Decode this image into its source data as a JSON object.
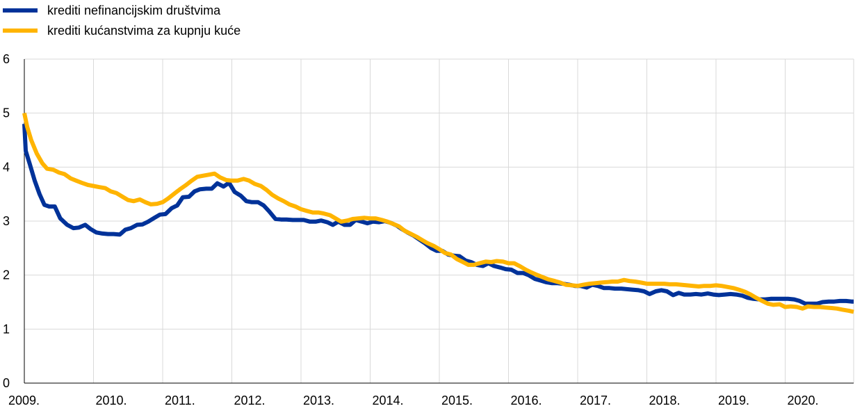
{
  "chart_data": {
    "type": "line",
    "title": "",
    "xlabel": "",
    "ylabel": "",
    "ylim": [
      0,
      6
    ],
    "yticks": [
      "0",
      "1",
      "2",
      "3",
      "4",
      "5",
      "6"
    ],
    "xlim": [
      2009.0,
      2020.99
    ],
    "xticks": [
      {
        "value": 2009,
        "label": "2009."
      },
      {
        "value": 2010,
        "label": "2010."
      },
      {
        "value": 2011,
        "label": "2011."
      },
      {
        "value": 2012,
        "label": "2012."
      },
      {
        "value": 2013,
        "label": "2013."
      },
      {
        "value": 2014,
        "label": "2014."
      },
      {
        "value": 2015,
        "label": "2015."
      },
      {
        "value": 2016,
        "label": "2016."
      },
      {
        "value": 2017,
        "label": "2017."
      },
      {
        "value": 2018,
        "label": "2018."
      },
      {
        "value": 2019,
        "label": "2019."
      },
      {
        "value": 2020,
        "label": "2020."
      }
    ],
    "grid": true,
    "legend_position": "top-left",
    "series": [
      {
        "name": "krediti nefinancijskim društvima",
        "color": "#003299",
        "points": [
          [
            2009.0,
            4.8
          ],
          [
            2009.02,
            4.3
          ],
          [
            2009.08,
            4.05
          ],
          [
            2009.15,
            3.75
          ],
          [
            2009.22,
            3.5
          ],
          [
            2009.29,
            3.3
          ],
          [
            2009.36,
            3.27
          ],
          [
            2009.44,
            3.27
          ],
          [
            2009.52,
            3.05
          ],
          [
            2009.62,
            2.93
          ],
          [
            2009.71,
            2.87
          ],
          [
            2009.79,
            2.88
          ],
          [
            2009.88,
            2.93
          ],
          [
            2009.96,
            2.85
          ],
          [
            2010.04,
            2.79
          ],
          [
            2010.13,
            2.77
          ],
          [
            2010.21,
            2.76
          ],
          [
            2010.29,
            2.76
          ],
          [
            2010.38,
            2.75
          ],
          [
            2010.46,
            2.84
          ],
          [
            2010.54,
            2.87
          ],
          [
            2010.63,
            2.93
          ],
          [
            2010.71,
            2.94
          ],
          [
            2010.79,
            2.99
          ],
          [
            2010.88,
            3.06
          ],
          [
            2010.96,
            3.12
          ],
          [
            2011.04,
            3.13
          ],
          [
            2011.13,
            3.24
          ],
          [
            2011.21,
            3.29
          ],
          [
            2011.29,
            3.44
          ],
          [
            2011.38,
            3.45
          ],
          [
            2011.46,
            3.55
          ],
          [
            2011.54,
            3.59
          ],
          [
            2011.63,
            3.6
          ],
          [
            2011.71,
            3.6
          ],
          [
            2011.79,
            3.7
          ],
          [
            2011.88,
            3.64
          ],
          [
            2011.96,
            3.71
          ],
          [
            2012.04,
            3.54
          ],
          [
            2012.13,
            3.47
          ],
          [
            2012.21,
            3.37
          ],
          [
            2012.29,
            3.35
          ],
          [
            2012.38,
            3.35
          ],
          [
            2012.46,
            3.29
          ],
          [
            2012.54,
            3.18
          ],
          [
            2012.63,
            3.04
          ],
          [
            2012.71,
            3.03
          ],
          [
            2012.79,
            3.03
          ],
          [
            2012.88,
            3.02
          ],
          [
            2012.96,
            3.02
          ],
          [
            2013.04,
            3.02
          ],
          [
            2013.13,
            2.99
          ],
          [
            2013.21,
            2.99
          ],
          [
            2013.29,
            3.01
          ],
          [
            2013.38,
            2.98
          ],
          [
            2013.46,
            2.93
          ],
          [
            2013.54,
            2.99
          ],
          [
            2013.63,
            2.93
          ],
          [
            2013.71,
            2.93
          ],
          [
            2013.79,
            3.02
          ],
          [
            2013.88,
            2.99
          ],
          [
            2013.96,
            2.96
          ],
          [
            2014.04,
            2.99
          ],
          [
            2014.13,
            2.98
          ],
          [
            2014.21,
            3.0
          ],
          [
            2014.29,
            2.97
          ],
          [
            2014.38,
            2.92
          ],
          [
            2014.46,
            2.85
          ],
          [
            2014.54,
            2.79
          ],
          [
            2014.63,
            2.73
          ],
          [
            2014.71,
            2.66
          ],
          [
            2014.79,
            2.59
          ],
          [
            2014.88,
            2.5
          ],
          [
            2014.96,
            2.45
          ],
          [
            2015.04,
            2.45
          ],
          [
            2015.13,
            2.38
          ],
          [
            2015.21,
            2.36
          ],
          [
            2015.29,
            2.35
          ],
          [
            2015.38,
            2.27
          ],
          [
            2015.46,
            2.24
          ],
          [
            2015.54,
            2.19
          ],
          [
            2015.63,
            2.17
          ],
          [
            2015.71,
            2.22
          ],
          [
            2015.79,
            2.17
          ],
          [
            2015.88,
            2.14
          ],
          [
            2015.96,
            2.11
          ],
          [
            2016.04,
            2.1
          ],
          [
            2016.13,
            2.04
          ],
          [
            2016.21,
            2.04
          ],
          [
            2016.29,
            2.0
          ],
          [
            2016.38,
            1.93
          ],
          [
            2016.46,
            1.9
          ],
          [
            2016.54,
            1.87
          ],
          [
            2016.63,
            1.85
          ],
          [
            2016.71,
            1.85
          ],
          [
            2016.79,
            1.84
          ],
          [
            2016.88,
            1.82
          ],
          [
            2016.96,
            1.8
          ],
          [
            2017.04,
            1.8
          ],
          [
            2017.13,
            1.77
          ],
          [
            2017.21,
            1.82
          ],
          [
            2017.29,
            1.8
          ],
          [
            2017.38,
            1.76
          ],
          [
            2017.46,
            1.76
          ],
          [
            2017.54,
            1.75
          ],
          [
            2017.63,
            1.75
          ],
          [
            2017.71,
            1.74
          ],
          [
            2017.79,
            1.73
          ],
          [
            2017.88,
            1.72
          ],
          [
            2017.96,
            1.7
          ],
          [
            2018.04,
            1.65
          ],
          [
            2018.13,
            1.7
          ],
          [
            2018.21,
            1.72
          ],
          [
            2018.29,
            1.7
          ],
          [
            2018.38,
            1.63
          ],
          [
            2018.46,
            1.67
          ],
          [
            2018.54,
            1.64
          ],
          [
            2018.63,
            1.64
          ],
          [
            2018.71,
            1.65
          ],
          [
            2018.79,
            1.64
          ],
          [
            2018.88,
            1.66
          ],
          [
            2018.96,
            1.64
          ],
          [
            2019.04,
            1.63
          ],
          [
            2019.13,
            1.64
          ],
          [
            2019.21,
            1.65
          ],
          [
            2019.29,
            1.64
          ],
          [
            2019.38,
            1.62
          ],
          [
            2019.46,
            1.58
          ],
          [
            2019.54,
            1.56
          ],
          [
            2019.63,
            1.55
          ],
          [
            2019.71,
            1.55
          ],
          [
            2019.79,
            1.56
          ],
          [
            2019.88,
            1.56
          ],
          [
            2019.96,
            1.56
          ],
          [
            2020.04,
            1.56
          ],
          [
            2020.13,
            1.55
          ],
          [
            2020.21,
            1.52
          ],
          [
            2020.29,
            1.47
          ],
          [
            2020.38,
            1.47
          ],
          [
            2020.46,
            1.47
          ],
          [
            2020.54,
            1.5
          ],
          [
            2020.63,
            1.51
          ],
          [
            2020.71,
            1.51
          ],
          [
            2020.79,
            1.52
          ],
          [
            2020.88,
            1.52
          ],
          [
            2020.96,
            1.51
          ],
          [
            2020.99,
            1.51
          ]
        ]
      },
      {
        "name": "krediti kućanstvima za kupnju kuće",
        "color": "#FFB400",
        "points": [
          [
            2009.0,
            5.0
          ],
          [
            2009.04,
            4.75
          ],
          [
            2009.1,
            4.5
          ],
          [
            2009.18,
            4.25
          ],
          [
            2009.26,
            4.07
          ],
          [
            2009.33,
            3.97
          ],
          [
            2009.42,
            3.95
          ],
          [
            2009.5,
            3.9
          ],
          [
            2009.58,
            3.87
          ],
          [
            2009.67,
            3.79
          ],
          [
            2009.75,
            3.75
          ],
          [
            2009.83,
            3.71
          ],
          [
            2009.92,
            3.67
          ],
          [
            2010.0,
            3.65
          ],
          [
            2010.08,
            3.63
          ],
          [
            2010.17,
            3.61
          ],
          [
            2010.25,
            3.55
          ],
          [
            2010.33,
            3.52
          ],
          [
            2010.42,
            3.45
          ],
          [
            2010.5,
            3.39
          ],
          [
            2010.58,
            3.37
          ],
          [
            2010.67,
            3.4
          ],
          [
            2010.75,
            3.35
          ],
          [
            2010.83,
            3.31
          ],
          [
            2010.92,
            3.32
          ],
          [
            2011.0,
            3.35
          ],
          [
            2011.08,
            3.42
          ],
          [
            2011.17,
            3.51
          ],
          [
            2011.25,
            3.59
          ],
          [
            2011.33,
            3.66
          ],
          [
            2011.42,
            3.75
          ],
          [
            2011.5,
            3.82
          ],
          [
            2011.58,
            3.84
          ],
          [
            2011.67,
            3.86
          ],
          [
            2011.75,
            3.88
          ],
          [
            2011.83,
            3.81
          ],
          [
            2011.92,
            3.76
          ],
          [
            2012.0,
            3.75
          ],
          [
            2012.08,
            3.75
          ],
          [
            2012.17,
            3.78
          ],
          [
            2012.25,
            3.75
          ],
          [
            2012.33,
            3.69
          ],
          [
            2012.42,
            3.65
          ],
          [
            2012.5,
            3.58
          ],
          [
            2012.58,
            3.49
          ],
          [
            2012.67,
            3.42
          ],
          [
            2012.75,
            3.37
          ],
          [
            2012.83,
            3.31
          ],
          [
            2012.92,
            3.27
          ],
          [
            2013.0,
            3.22
          ],
          [
            2013.08,
            3.19
          ],
          [
            2013.17,
            3.16
          ],
          [
            2013.25,
            3.16
          ],
          [
            2013.33,
            3.14
          ],
          [
            2013.42,
            3.11
          ],
          [
            2013.5,
            3.05
          ],
          [
            2013.58,
            2.99
          ],
          [
            2013.67,
            3.01
          ],
          [
            2013.75,
            3.04
          ],
          [
            2013.83,
            3.05
          ],
          [
            2013.92,
            3.06
          ],
          [
            2014.0,
            3.05
          ],
          [
            2014.08,
            3.05
          ],
          [
            2014.17,
            3.02
          ],
          [
            2014.25,
            2.99
          ],
          [
            2014.33,
            2.95
          ],
          [
            2014.42,
            2.9
          ],
          [
            2014.5,
            2.82
          ],
          [
            2014.58,
            2.77
          ],
          [
            2014.67,
            2.71
          ],
          [
            2014.75,
            2.65
          ],
          [
            2014.83,
            2.59
          ],
          [
            2014.92,
            2.54
          ],
          [
            2015.0,
            2.48
          ],
          [
            2015.08,
            2.41
          ],
          [
            2015.17,
            2.38
          ],
          [
            2015.25,
            2.3
          ],
          [
            2015.33,
            2.25
          ],
          [
            2015.42,
            2.19
          ],
          [
            2015.5,
            2.19
          ],
          [
            2015.58,
            2.22
          ],
          [
            2015.67,
            2.25
          ],
          [
            2015.75,
            2.24
          ],
          [
            2015.83,
            2.26
          ],
          [
            2015.92,
            2.25
          ],
          [
            2016.0,
            2.22
          ],
          [
            2016.08,
            2.22
          ],
          [
            2016.17,
            2.16
          ],
          [
            2016.25,
            2.1
          ],
          [
            2016.33,
            2.05
          ],
          [
            2016.42,
            2.0
          ],
          [
            2016.5,
            1.96
          ],
          [
            2016.58,
            1.92
          ],
          [
            2016.67,
            1.89
          ],
          [
            2016.75,
            1.86
          ],
          [
            2016.83,
            1.82
          ],
          [
            2016.92,
            1.81
          ],
          [
            2017.0,
            1.8
          ],
          [
            2017.08,
            1.82
          ],
          [
            2017.17,
            1.84
          ],
          [
            2017.25,
            1.85
          ],
          [
            2017.33,
            1.86
          ],
          [
            2017.42,
            1.87
          ],
          [
            2017.5,
            1.88
          ],
          [
            2017.58,
            1.88
          ],
          [
            2017.67,
            1.91
          ],
          [
            2017.75,
            1.89
          ],
          [
            2017.83,
            1.88
          ],
          [
            2017.92,
            1.86
          ],
          [
            2018.0,
            1.84
          ],
          [
            2018.08,
            1.84
          ],
          [
            2018.17,
            1.84
          ],
          [
            2018.25,
            1.84
          ],
          [
            2018.33,
            1.83
          ],
          [
            2018.42,
            1.83
          ],
          [
            2018.5,
            1.82
          ],
          [
            2018.58,
            1.81
          ],
          [
            2018.67,
            1.8
          ],
          [
            2018.75,
            1.79
          ],
          [
            2018.83,
            1.8
          ],
          [
            2018.92,
            1.8
          ],
          [
            2019.0,
            1.81
          ],
          [
            2019.08,
            1.8
          ],
          [
            2019.17,
            1.78
          ],
          [
            2019.25,
            1.76
          ],
          [
            2019.33,
            1.73
          ],
          [
            2019.42,
            1.69
          ],
          [
            2019.5,
            1.64
          ],
          [
            2019.58,
            1.58
          ],
          [
            2019.67,
            1.52
          ],
          [
            2019.75,
            1.47
          ],
          [
            2019.83,
            1.45
          ],
          [
            2019.92,
            1.46
          ],
          [
            2020.0,
            1.41
          ],
          [
            2020.08,
            1.42
          ],
          [
            2020.17,
            1.41
          ],
          [
            2020.25,
            1.38
          ],
          [
            2020.33,
            1.42
          ],
          [
            2020.42,
            1.41
          ],
          [
            2020.5,
            1.41
          ],
          [
            2020.58,
            1.4
          ],
          [
            2020.67,
            1.39
          ],
          [
            2020.75,
            1.38
          ],
          [
            2020.83,
            1.36
          ],
          [
            2020.92,
            1.34
          ],
          [
            2020.99,
            1.32
          ]
        ]
      }
    ]
  }
}
